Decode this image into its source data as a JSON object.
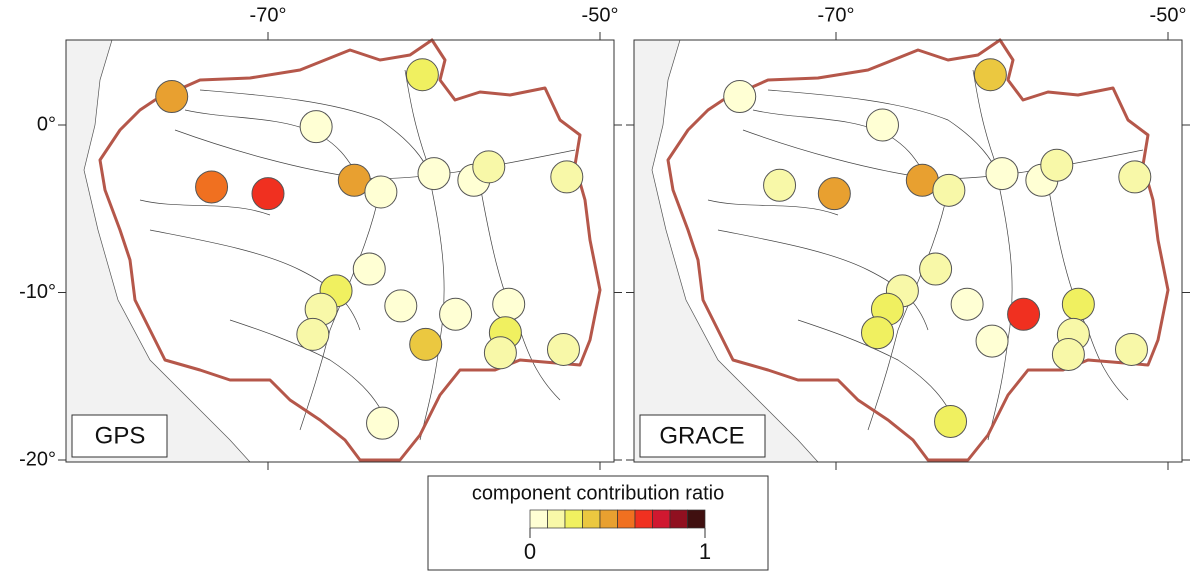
{
  "panels": [
    {
      "label": "GPS",
      "stations": [
        {
          "lon": -75.8,
          "lat": 1.7,
          "ratio": 0.4
        },
        {
          "lon": -60.7,
          "lat": 3.0,
          "ratio": 0.2
        },
        {
          "lon": -67.1,
          "lat": -0.1,
          "ratio": 0.05
        },
        {
          "lon": -73.4,
          "lat": -3.7,
          "ratio": 0.55
        },
        {
          "lon": -70.0,
          "lat": -4.1,
          "ratio": 0.65
        },
        {
          "lon": -64.8,
          "lat": -3.3,
          "ratio": 0.4
        },
        {
          "lon": -63.2,
          "lat": -4.0,
          "ratio": 0.08
        },
        {
          "lon": -60.0,
          "lat": -2.9,
          "ratio": 0.08
        },
        {
          "lon": -57.6,
          "lat": -3.3,
          "ratio": 0.08
        },
        {
          "lon": -56.7,
          "lat": -2.5,
          "ratio": 0.1
        },
        {
          "lon": -52.0,
          "lat": -3.1,
          "ratio": 0.1
        },
        {
          "lon": -63.9,
          "lat": -8.6,
          "ratio": 0.08
        },
        {
          "lon": -65.9,
          "lat": -9.9,
          "ratio": 0.2
        },
        {
          "lon": -66.8,
          "lat": -11.0,
          "ratio": 0.12
        },
        {
          "lon": -67.3,
          "lat": -12.5,
          "ratio": 0.1
        },
        {
          "lon": -62.0,
          "lat": -10.8,
          "ratio": 0.07
        },
        {
          "lon": -58.7,
          "lat": -11.3,
          "ratio": 0.07
        },
        {
          "lon": -55.5,
          "lat": -10.7,
          "ratio": 0.08
        },
        {
          "lon": -55.7,
          "lat": -12.4,
          "ratio": 0.22
        },
        {
          "lon": -56.0,
          "lat": -13.6,
          "ratio": 0.1
        },
        {
          "lon": -60.5,
          "lat": -13.1,
          "ratio": 0.38
        },
        {
          "lon": -52.2,
          "lat": -13.4,
          "ratio": 0.1
        },
        {
          "lon": -63.1,
          "lat": -17.8,
          "ratio": 0.08
        }
      ]
    },
    {
      "label": "GRACE",
      "stations": [
        {
          "lon": -75.8,
          "lat": 1.7,
          "ratio": 0.05
        },
        {
          "lon": -60.7,
          "lat": 3.0,
          "ratio": 0.35
        },
        {
          "lon": -67.2,
          "lat": 0,
          "ratio": 0.03
        },
        {
          "lon": -73.4,
          "lat": -3.6,
          "ratio": 0.1
        },
        {
          "lon": -70.1,
          "lat": -4.1,
          "ratio": 0.4
        },
        {
          "lon": -64.8,
          "lat": -3.3,
          "ratio": 0.4
        },
        {
          "lon": -63.2,
          "lat": -3.9,
          "ratio": 0.1
        },
        {
          "lon": -60.0,
          "lat": -2.9,
          "ratio": 0.08
        },
        {
          "lon": -57.6,
          "lat": -3.3,
          "ratio": 0.08
        },
        {
          "lon": -56.7,
          "lat": -2.4,
          "ratio": 0.1
        },
        {
          "lon": -52.0,
          "lat": -3.1,
          "ratio": 0.1
        },
        {
          "lon": -64.0,
          "lat": -8.6,
          "ratio": 0.1
        },
        {
          "lon": -66.0,
          "lat": -9.9,
          "ratio": 0.15
        },
        {
          "lon": -66.9,
          "lat": -11.0,
          "ratio": 0.2
        },
        {
          "lon": -67.5,
          "lat": -12.4,
          "ratio": 0.2
        },
        {
          "lon": -62.1,
          "lat": -10.7,
          "ratio": 0.06
        },
        {
          "lon": -60.6,
          "lat": -12.9,
          "ratio": 0.07
        },
        {
          "lon": -58.7,
          "lat": -11.3,
          "ratio": 0.65
        },
        {
          "lon": -55.4,
          "lat": -10.7,
          "ratio": 0.2
        },
        {
          "lon": -55.7,
          "lat": -12.5,
          "ratio": 0.1
        },
        {
          "lon": -56.0,
          "lat": -13.7,
          "ratio": 0.18
        },
        {
          "lon": -52.2,
          "lat": -13.4,
          "ratio": 0.1
        },
        {
          "lon": -63.1,
          "lat": -17.7,
          "ratio": 0.25
        }
      ]
    }
  ],
  "axes": {
    "lon_ticks": [
      {
        "value": -70,
        "label": "-70°"
      },
      {
        "value": -50,
        "label": "-50°"
      }
    ],
    "lat_ticks": [
      {
        "value": 0,
        "label": "0°"
      },
      {
        "value": -10,
        "label": "-10°"
      },
      {
        "value": -20,
        "label": "-20°"
      }
    ]
  },
  "colorbar": {
    "title": "component contribution ratio",
    "range": [
      0,
      1
    ],
    "ticks": [
      0,
      1
    ],
    "colors": [
      "#ffffd4",
      "#f8f8a8",
      "#f0f060",
      "#ebc840",
      "#e8a030",
      "#f07020",
      "#f03020",
      "#d01830",
      "#901020",
      "#401010"
    ]
  }
}
